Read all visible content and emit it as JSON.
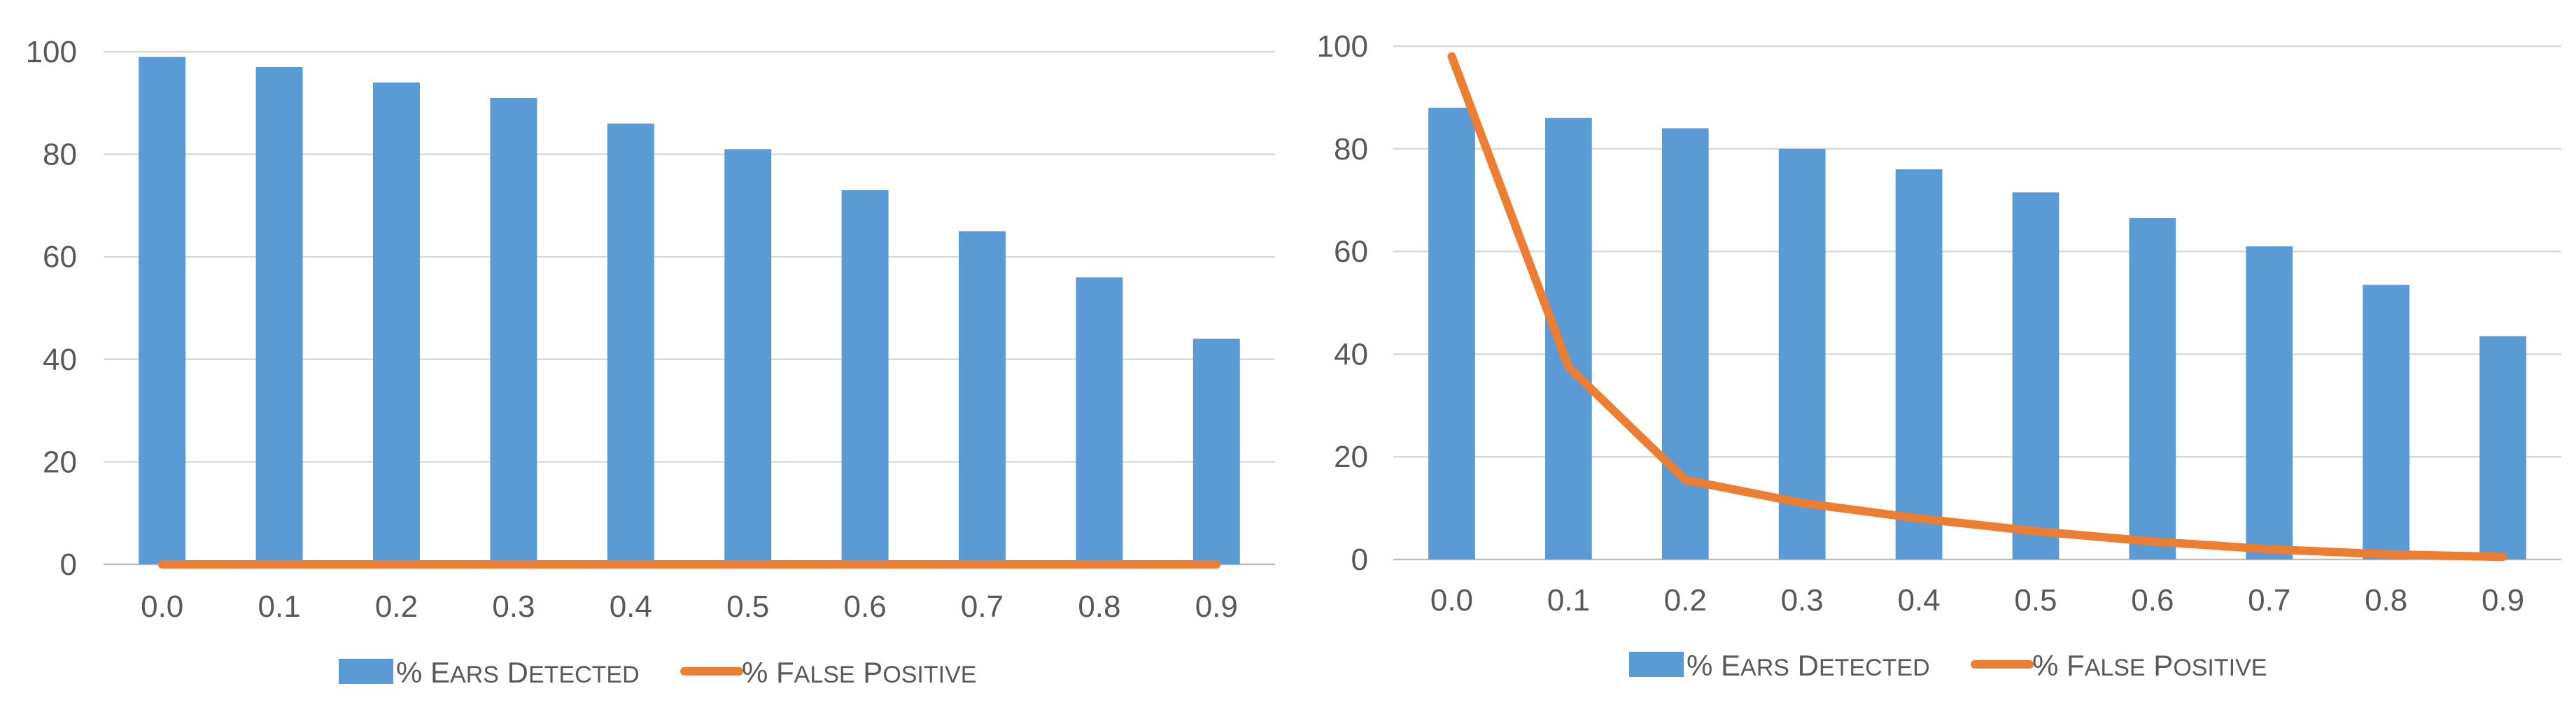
{
  "colors": {
    "bar": "#5b9bd5",
    "line": "#ed7d31",
    "grid": "#d9d9d9",
    "axis": "#bfbfbf",
    "text": "#595959"
  },
  "chart_data": [
    {
      "type": "bar",
      "categories": [
        "0.0",
        "0.1",
        "0.2",
        "0.3",
        "0.4",
        "0.5",
        "0.6",
        "0.7",
        "0.8",
        "0.9"
      ],
      "yticks": [
        "0",
        "20",
        "40",
        "60",
        "80",
        "100"
      ],
      "ylim": [
        0,
        100
      ],
      "grid": true,
      "legend_position": "bottom",
      "series": [
        {
          "name": "% Ears Detected",
          "name_prefix": "% E",
          "name_smallcaps_1": "ars",
          "name_mid": " D",
          "name_smallcaps_2": "etected",
          "type": "bar",
          "color": "#5b9bd5",
          "values": [
            99,
            97,
            94,
            91,
            86,
            81,
            73,
            65,
            56,
            44
          ]
        },
        {
          "name": "% False Positive",
          "name_prefix": "% F",
          "name_smallcaps_1": "alse",
          "name_mid": " P",
          "name_smallcaps_2": "ositive",
          "type": "line",
          "color": "#ed7d31",
          "values": [
            0,
            0,
            0,
            0,
            0,
            0,
            0,
            0,
            0,
            0
          ]
        }
      ]
    },
    {
      "type": "bar",
      "categories": [
        "0.0",
        "0.1",
        "0.2",
        "0.3",
        "0.4",
        "0.5",
        "0.6",
        "0.7",
        "0.8",
        "0.9"
      ],
      "yticks": [
        "0",
        "20",
        "40",
        "60",
        "80",
        "100"
      ],
      "ylim": [
        0,
        100
      ],
      "grid": true,
      "legend_position": "bottom",
      "series": [
        {
          "name": "% Ears Detected",
          "name_prefix": "% E",
          "name_smallcaps_1": "ars",
          "name_mid": " D",
          "name_smallcaps_2": "etected",
          "type": "bar",
          "color": "#5b9bd5",
          "values": [
            88,
            86,
            84,
            80,
            76,
            71.5,
            66.5,
            61,
            53.5,
            43.5
          ]
        },
        {
          "name": "% False Positive",
          "name_prefix": "% F",
          "name_smallcaps_1": "alse",
          "name_mid": " P",
          "name_smallcaps_2": "ositive",
          "type": "line",
          "color": "#ed7d31",
          "values": [
            98,
            37.5,
            15.5,
            11,
            8,
            5.5,
            3.5,
            2,
            1,
            0.5
          ]
        }
      ]
    }
  ]
}
